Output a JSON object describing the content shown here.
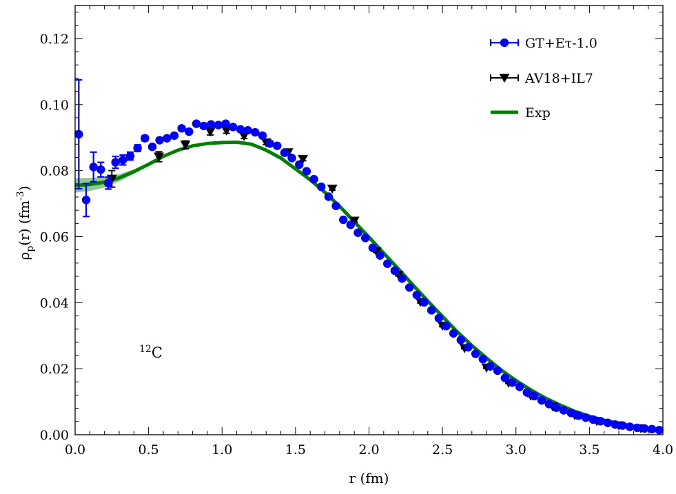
{
  "chart_data": {
    "type": "scatter",
    "title": "",
    "xlabel": "r (fm)",
    "ylabel": {
      "main": "ρ",
      "sub": "p",
      "paren": "(r) (fm",
      "sup": "-3",
      "close": ")"
    },
    "xlim": [
      0.0,
      4.0
    ],
    "ylim": [
      0.0,
      0.13
    ],
    "x_ticks": [
      "0.0",
      "0.5",
      "1.0",
      "1.5",
      "2.0",
      "2.5",
      "3.0",
      "3.5",
      "4.0"
    ],
    "y_ticks": [
      "0.00",
      "0.02",
      "0.04",
      "0.06",
      "0.08",
      "0.10",
      "0.12"
    ],
    "x_tick_values": [
      0.0,
      0.5,
      1.0,
      1.5,
      2.0,
      2.5,
      3.0,
      3.5,
      4.0
    ],
    "y_tick_values": [
      0.0,
      0.02,
      0.04,
      0.06,
      0.08,
      0.1,
      0.12
    ],
    "grid": false,
    "legend_position": "top-right",
    "annotation": {
      "sup": "12",
      "text": "C"
    },
    "series": [
      {
        "name": "GT+Eτ-1.0",
        "kind": "points-with-errorbars",
        "marker": "circle",
        "color": "#0000ff",
        "x": [
          0.025,
          0.075,
          0.125,
          0.175,
          0.225,
          0.275,
          0.325,
          0.375,
          0.425,
          0.475,
          0.525,
          0.575,
          0.625,
          0.675,
          0.725,
          0.775,
          0.825,
          0.875,
          0.925,
          0.975,
          1.025,
          1.075,
          1.125,
          1.175,
          1.225,
          1.275,
          1.325,
          1.375,
          1.425,
          1.475,
          1.525,
          1.575,
          1.625,
          1.675,
          1.725,
          1.775,
          1.825,
          1.875,
          1.925,
          1.975,
          2.025,
          2.075,
          2.125,
          2.175,
          2.225,
          2.275,
          2.325,
          2.375,
          2.425,
          2.475,
          2.525,
          2.575,
          2.625,
          2.675,
          2.725,
          2.775,
          2.825,
          2.875,
          2.925,
          2.975,
          3.025,
          3.075,
          3.125,
          3.175,
          3.225,
          3.275,
          3.325,
          3.375,
          3.425,
          3.475,
          3.525,
          3.575,
          3.625,
          3.675,
          3.725,
          3.775,
          3.825,
          3.875,
          3.925,
          3.975
        ],
        "y": [
          0.091,
          0.0711,
          0.0811,
          0.0803,
          0.0762,
          0.0825,
          0.0832,
          0.0844,
          0.0868,
          0.0898,
          0.0872,
          0.0892,
          0.0898,
          0.0906,
          0.0928,
          0.0918,
          0.0942,
          0.0935,
          0.094,
          0.0938,
          0.0942,
          0.0932,
          0.0925,
          0.0922,
          0.0916,
          0.0906,
          0.0882,
          0.0875,
          0.0854,
          0.0838,
          0.0818,
          0.0798,
          0.0774,
          0.0751,
          0.0721,
          0.0693,
          0.0651,
          0.0636,
          0.0612,
          0.0596,
          0.0566,
          0.0543,
          0.0518,
          0.0497,
          0.0473,
          0.0446,
          0.0423,
          0.0401,
          0.0377,
          0.0353,
          0.0329,
          0.0307,
          0.0287,
          0.0265,
          0.0245,
          0.0229,
          0.0207,
          0.0194,
          0.0172,
          0.0158,
          0.0145,
          0.0128,
          0.0117,
          0.0104,
          0.0093,
          0.0082,
          0.0074,
          0.0066,
          0.0058,
          0.0052,
          0.0046,
          0.0041,
          0.0036,
          0.0031,
          0.0028,
          0.0024,
          0.0021,
          0.0019,
          0.0017,
          0.0014
        ],
        "yerr": [
          0.0165,
          0.005,
          0.0045,
          0.0022,
          0.0018,
          0.0018,
          0.0015,
          0.0012,
          0.001,
          0.0008,
          0.0006,
          0.0006,
          0.0005,
          0.0005,
          0.0005,
          0.0005,
          0.0005,
          0.0005,
          0.0005,
          0.0005,
          0.0005,
          0.0005,
          0.0005,
          0.0005,
          0.0005,
          0.0005,
          0.0004,
          0.0004,
          0.0004,
          0.0004,
          0.0004,
          0.0004,
          0.0004,
          0.0004,
          0.0004,
          0.0004,
          0.0003,
          0.0003,
          0.0003,
          0.0003,
          0.0003,
          0.0003,
          0.0003,
          0.0003,
          0.0003,
          0.0003,
          0.0003,
          0.0003,
          0.0003,
          0.0003,
          0.0002,
          0.0002,
          0.0002,
          0.0002,
          0.0002,
          0.0002,
          0.0002,
          0.0002,
          0.0002,
          0.0002,
          0.0002,
          0.0002,
          0.0002,
          0.0002,
          0.0002,
          0.0002,
          0.0002,
          0.0002,
          0.0002,
          0.0002,
          0.0002,
          0.0002,
          0.0002,
          0.0002,
          0.0002,
          0.0002,
          0.0002,
          0.0002,
          0.0002,
          0.0002
        ]
      },
      {
        "name": "AV18+IL7",
        "kind": "points-with-errorbars",
        "marker": "triangle-down",
        "color": "#000000",
        "x": [
          0.25,
          0.57,
          0.75,
          0.92,
          1.03,
          1.15,
          1.3,
          1.45,
          1.55,
          1.75,
          1.9,
          2.05,
          2.2,
          2.35,
          2.5,
          2.65,
          2.8,
          2.95,
          3.1,
          3.25,
          3.4,
          3.55,
          3.7,
          3.85
        ],
        "y": [
          0.0775,
          0.0842,
          0.0878,
          0.0918,
          0.0921,
          0.0904,
          0.0885,
          0.0855,
          0.0835,
          0.0745,
          0.0648,
          0.0555,
          0.0484,
          0.0402,
          0.033,
          0.0262,
          0.0203,
          0.0157,
          0.0118,
          0.0085,
          0.0059,
          0.0041,
          0.0028,
          0.0019
        ],
        "yerr": [
          0.0025,
          0.0015,
          0.0012,
          0.001,
          0.0008,
          0.0007,
          0.0006,
          0.0005,
          0.0005,
          0.0004,
          0.0004,
          0.0003,
          0.0003,
          0.0003,
          0.0003,
          0.0002,
          0.0002,
          0.0002,
          0.0002,
          0.0002,
          0.0002,
          0.0002,
          0.0002,
          0.0002
        ]
      },
      {
        "name": "Exp",
        "kind": "line-with-band",
        "color": "#008000",
        "band_color": "#6ab46a",
        "x": [
          0.0,
          0.1,
          0.2,
          0.3,
          0.4,
          0.5,
          0.6,
          0.7,
          0.8,
          0.9,
          1.0,
          1.1,
          1.2,
          1.3,
          1.4,
          1.5,
          1.6,
          1.7,
          1.8,
          1.9,
          2.0,
          2.1,
          2.2,
          2.3,
          2.4,
          2.5,
          2.6,
          2.7,
          2.8,
          2.9,
          3.0,
          3.1,
          3.2,
          3.3,
          3.4,
          3.5,
          3.6,
          3.7,
          3.8,
          3.9,
          4.0
        ],
        "y": [
          0.0755,
          0.0758,
          0.0765,
          0.0778,
          0.0797,
          0.0819,
          0.0843,
          0.0862,
          0.0875,
          0.0882,
          0.0885,
          0.0886,
          0.088,
          0.0862,
          0.0838,
          0.0805,
          0.0772,
          0.0734,
          0.0692,
          0.0645,
          0.0598,
          0.055,
          0.0502,
          0.0453,
          0.0405,
          0.0358,
          0.0312,
          0.027,
          0.0232,
          0.0196,
          0.0164,
          0.0136,
          0.0111,
          0.009,
          0.0071,
          0.0056,
          0.0044,
          0.0034,
          0.0026,
          0.0019,
          0.0014
        ],
        "band": [
          0.0022,
          0.002,
          0.0016,
          0.0011,
          0.0007,
          0.0004,
          0.0002,
          0.0001,
          0.0001,
          0.0001,
          0.0001,
          0.0001,
          0.0001,
          0.0001,
          0.0001,
          0.0001,
          0.0001,
          0.0001,
          0.0001,
          0.0001,
          0.0001,
          0.0001,
          0.0001,
          0.0001,
          0.0001,
          0.0001,
          0.0001,
          0.0001,
          0.0001,
          0.0001,
          0.0001,
          0.0001,
          0.0001,
          0.0001,
          0.0001,
          0.0001,
          0.0001,
          0.0001,
          0.0001,
          0.0001,
          0.0001
        ]
      }
    ]
  }
}
